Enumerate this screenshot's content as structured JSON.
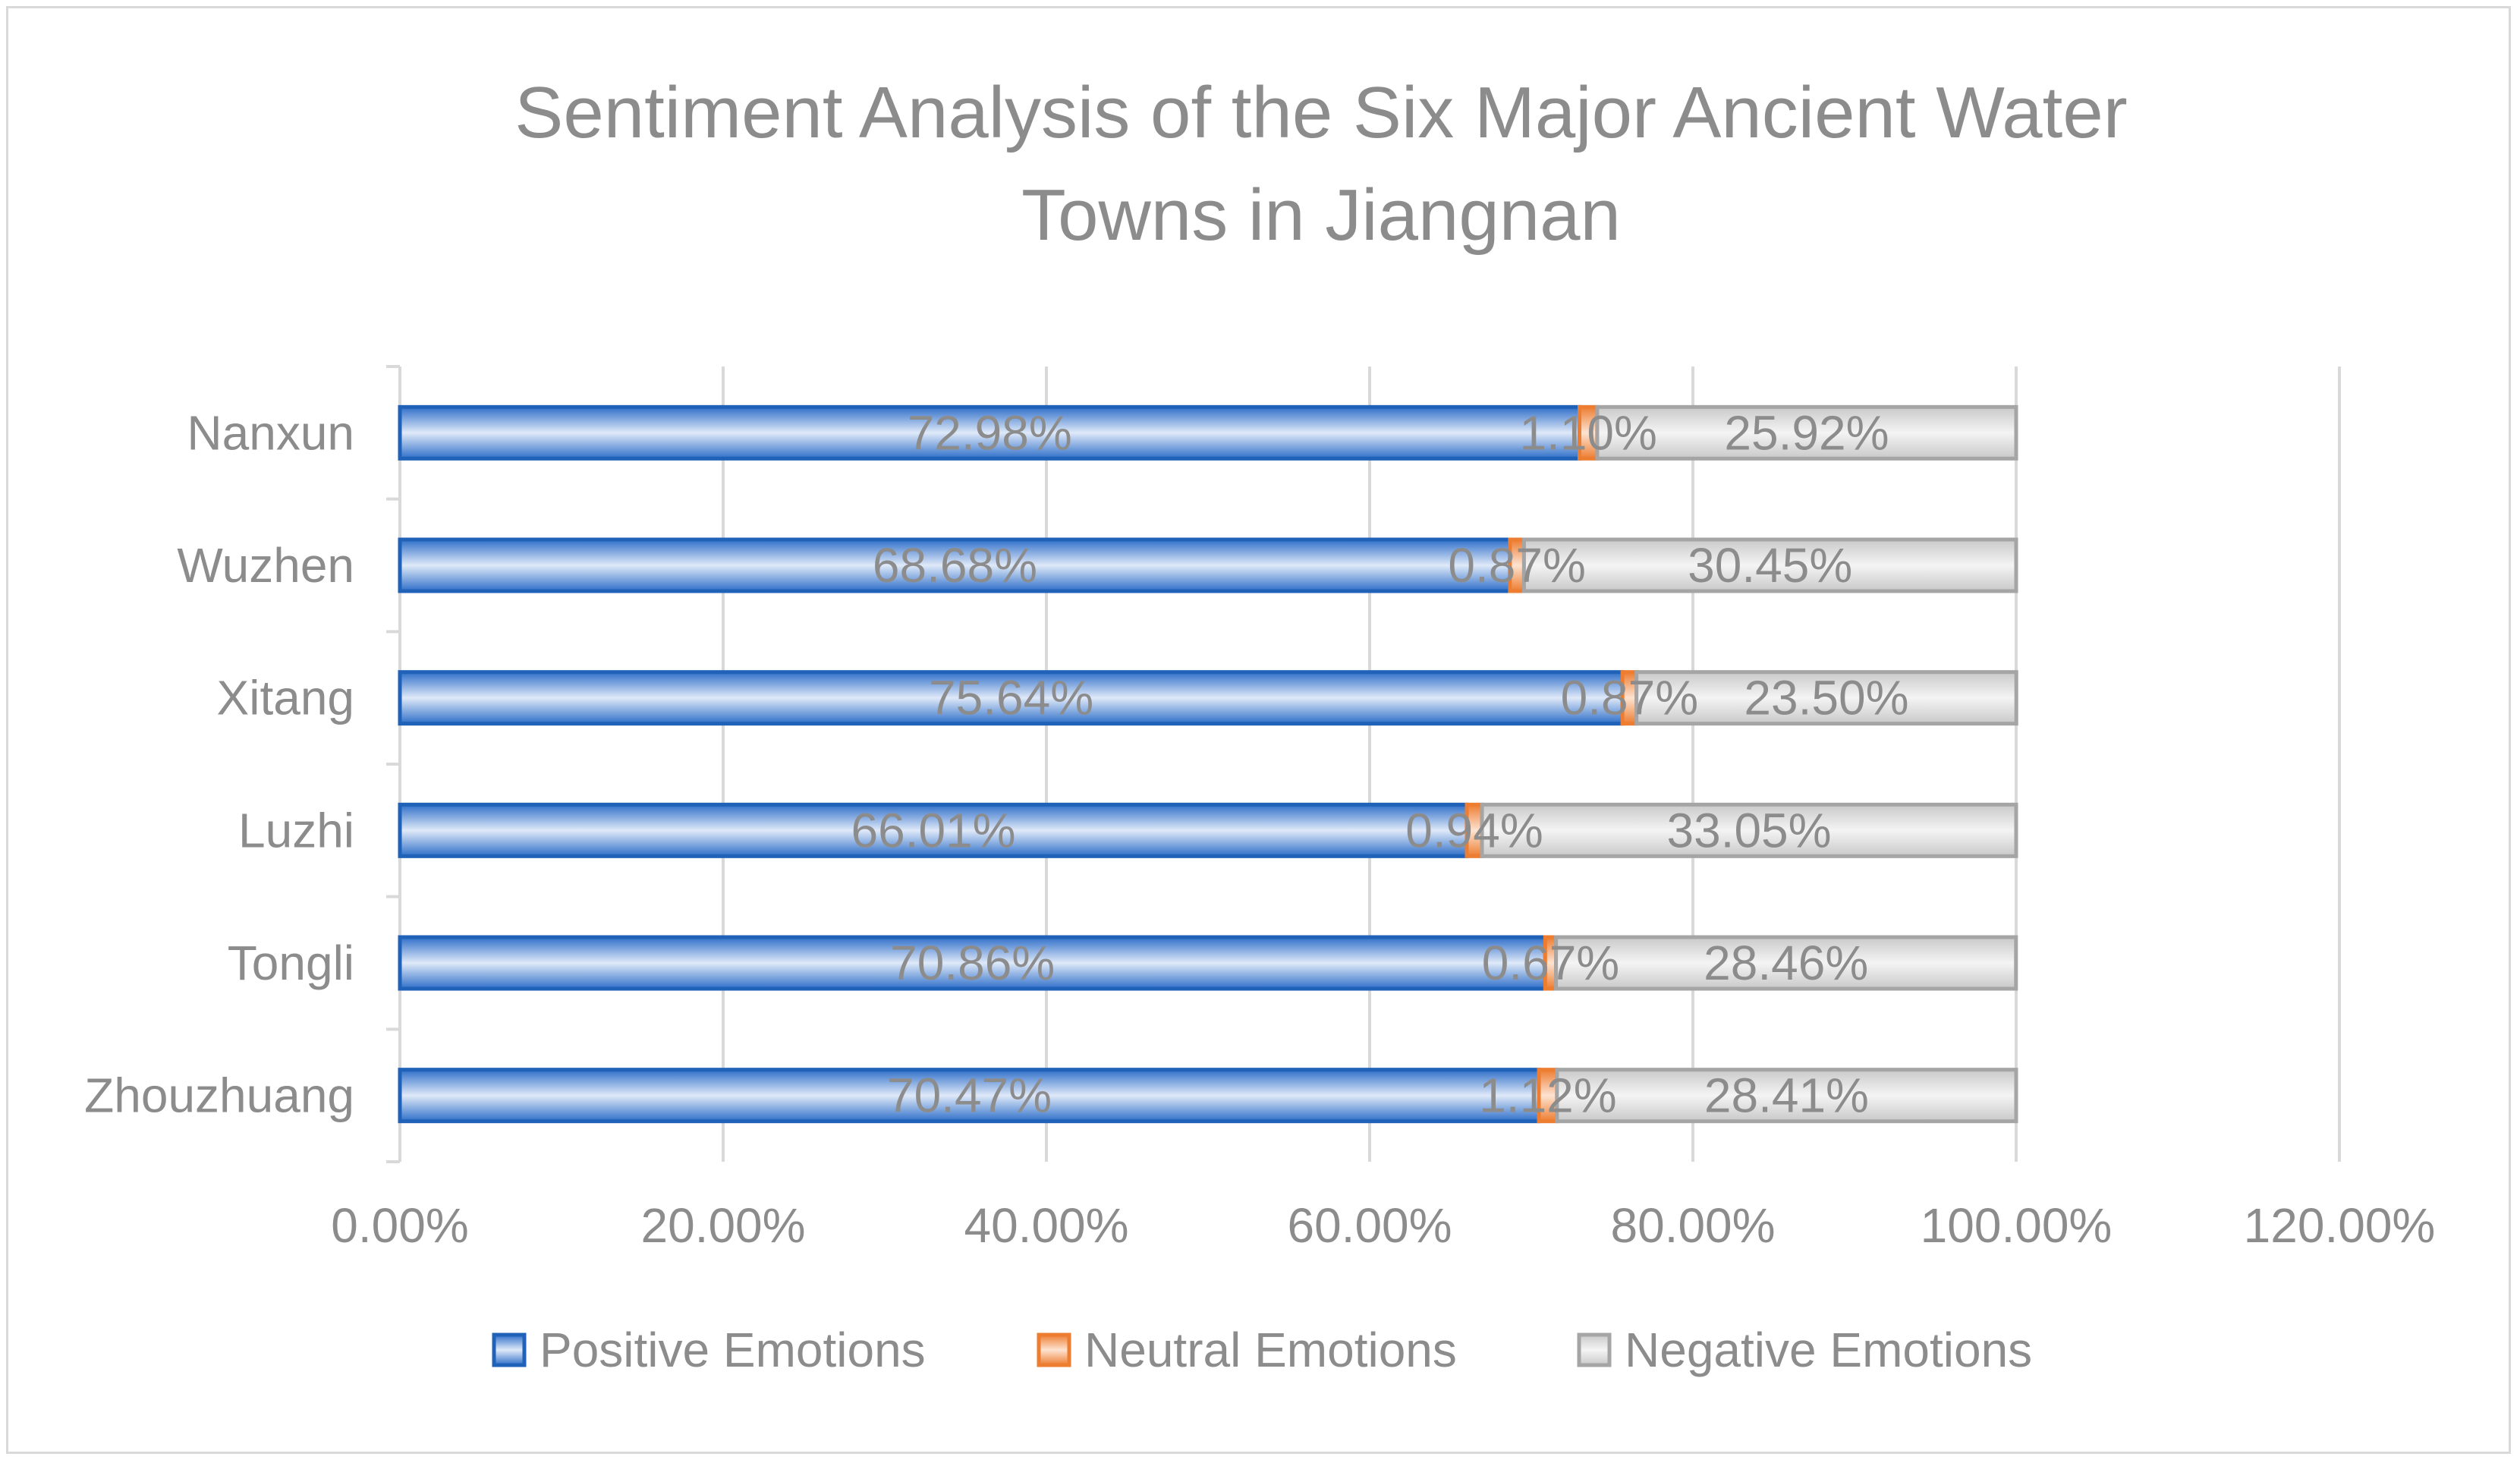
{
  "chart_data": {
    "type": "bar",
    "orientation": "horizontal",
    "stacked": true,
    "title": "Sentiment Analysis of the Six Major Ancient Water Towns in Jiangnan",
    "title_lines": [
      "Sentiment Analysis of the Six Major Ancient Water",
      "Towns in Jiangnan"
    ],
    "categories": [
      "Nanxun",
      "Wuzhen",
      "Xitang",
      "Luzhi",
      "Tongli",
      "Zhouzhuang"
    ],
    "series": [
      {
        "name": "Positive Emotions",
        "values": [
          72.98,
          68.68,
          75.64,
          66.01,
          70.86,
          70.47
        ],
        "labels": [
          "72.98%",
          "68.68%",
          "75.64%",
          "66.01%",
          "70.86%",
          "70.47%"
        ],
        "color": "#4a86d8",
        "border": "#1f62b8"
      },
      {
        "name": "Neutral Emotions",
        "values": [
          1.1,
          0.87,
          0.87,
          0.94,
          0.67,
          1.12
        ],
        "labels": [
          "1.10%",
          "0.87%",
          "0.87%",
          "0.94%",
          "0.67%",
          "1.12%"
        ],
        "color": "#f4a26c",
        "border": "#ed7d31"
      },
      {
        "name": "Negative Emotions",
        "values": [
          25.92,
          30.45,
          23.5,
          33.05,
          28.46,
          28.41
        ],
        "labels": [
          "25.92%",
          "30.45%",
          "23.50%",
          "33.05%",
          "28.46%",
          "28.41%"
        ],
        "color": "#e3e3e3",
        "border": "#a5a5a5"
      }
    ],
    "xlim": [
      0,
      120
    ],
    "x_ticks": [
      0,
      20,
      40,
      60,
      80,
      100,
      120
    ],
    "x_tick_labels": [
      "0.00%",
      "20.00%",
      "40.00%",
      "60.00%",
      "80.00%",
      "100.00%",
      "120.00%"
    ],
    "grid": true,
    "legend_position": "bottom",
    "xlabel": "",
    "ylabel": ""
  }
}
